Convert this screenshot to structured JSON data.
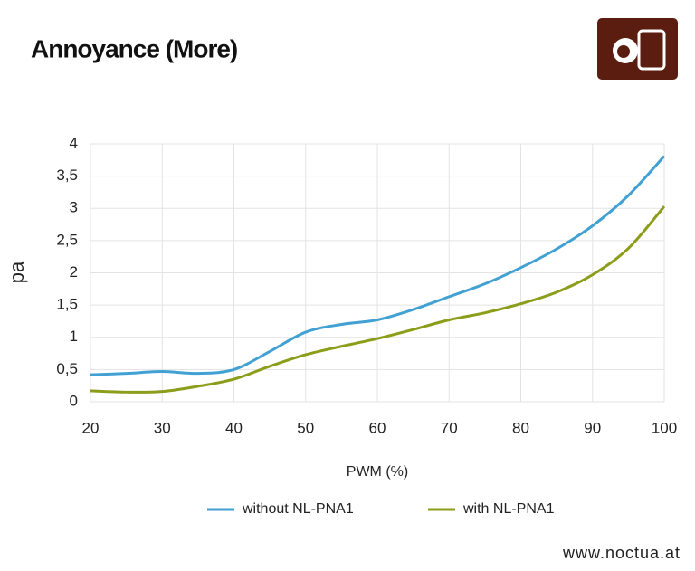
{
  "chart_data": {
    "type": "line",
    "title": "Annoyance (More)",
    "x_label": "PWM (%)",
    "y_label": "pa",
    "x": [
      20,
      25,
      30,
      35,
      40,
      45,
      50,
      55,
      60,
      65,
      70,
      75,
      80,
      85,
      90,
      95,
      100
    ],
    "series": [
      {
        "name": "without NL-PNA1",
        "color": "#41a1d3",
        "values": [
          0.42,
          0.44,
          0.47,
          0.44,
          0.5,
          0.78,
          1.08,
          1.2,
          1.27,
          1.43,
          1.63,
          1.83,
          2.08,
          2.37,
          2.73,
          3.2,
          3.81
        ]
      },
      {
        "name": "with NL-PNA1",
        "color": "#8c9d1a",
        "values": [
          0.17,
          0.15,
          0.16,
          0.24,
          0.35,
          0.55,
          0.73,
          0.86,
          0.98,
          1.12,
          1.27,
          1.38,
          1.52,
          1.7,
          1.97,
          2.38,
          3.03
        ]
      }
    ],
    "xlim": [
      20,
      100
    ],
    "xticks": [
      20,
      30,
      40,
      50,
      60,
      70,
      80,
      90,
      100
    ],
    "ylim": [
      0,
      4
    ],
    "yticks": [
      0,
      {
        "value": 0.5,
        "label": "0,5"
      },
      1,
      {
        "value": 1.5,
        "label": "1,5"
      },
      2,
      {
        "value": 2.5,
        "label": "2,5"
      },
      3,
      {
        "value": 3.5,
        "label": "3,5"
      },
      4
    ],
    "grid": true,
    "legend": "bottom"
  },
  "footer": "www.noctua.at"
}
